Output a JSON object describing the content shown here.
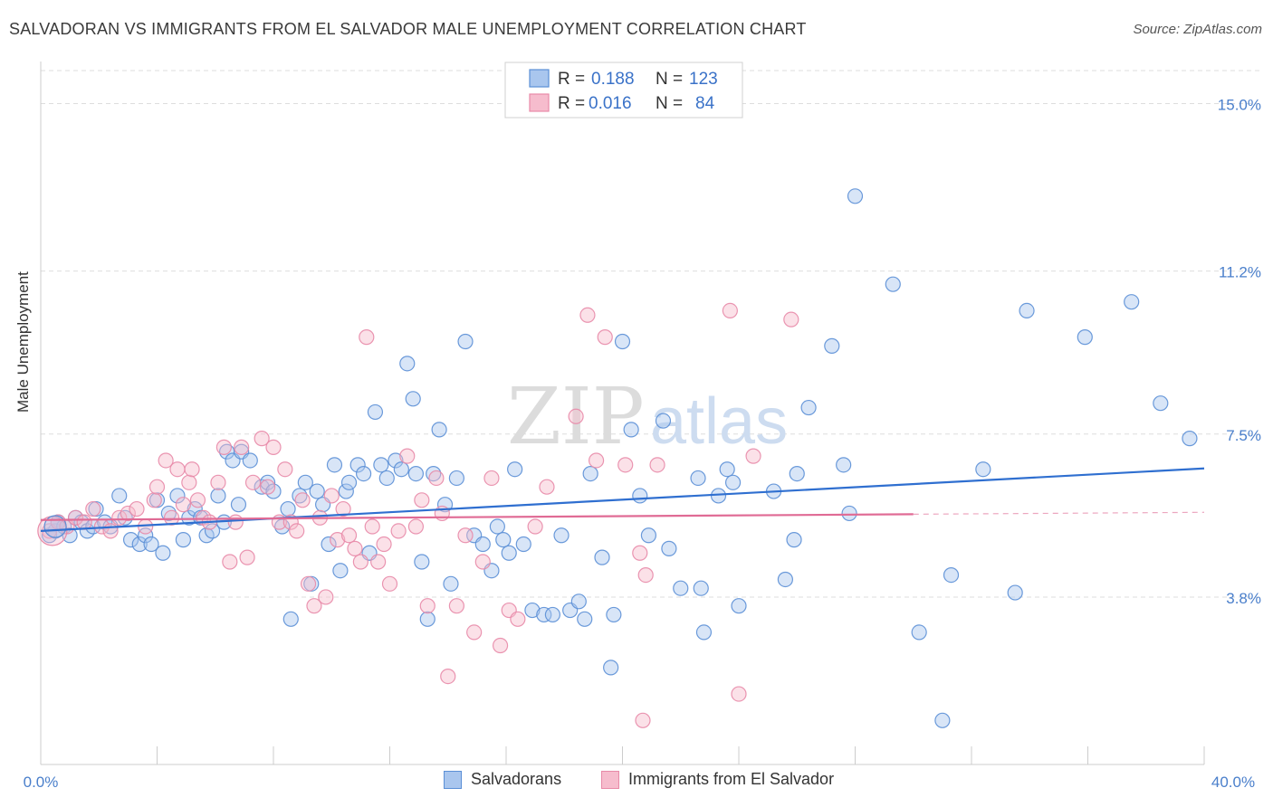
{
  "header": {
    "title": "SALVADORAN VS IMMIGRANTS FROM EL SALVADOR MALE UNEMPLOYMENT CORRELATION CHART",
    "source": "Source: ZipAtlas.com"
  },
  "watermark": {
    "zip": "ZIP",
    "atlas": "atlas"
  },
  "legend_top": {
    "rows": [
      {
        "r_label": "R =",
        "r_value": "0.188",
        "n_label": "N =",
        "n_value": "123"
      },
      {
        "r_label": "R =",
        "r_value": "0.016",
        "n_label": "N =",
        "n_value": "84"
      }
    ]
  },
  "legend_bottom": {
    "items": [
      {
        "label": "Salvadorans"
      },
      {
        "label": "Immigrants from El Salvador"
      }
    ]
  },
  "colors": {
    "blue_fill": "#a9c6ee",
    "blue_stroke": "#5b8fd6",
    "blue_line": "#2f6fd0",
    "pink_fill": "#f6bccd",
    "pink_stroke": "#e88aa8",
    "pink_line": "#e06b95",
    "tick_text": "#4a7fcb",
    "grid": "#dddddd"
  },
  "chart_data": {
    "type": "scatter",
    "title": "SALVADORAN VS IMMIGRANTS FROM EL SALVADOR MALE UNEMPLOYMENT CORRELATION CHART",
    "xlabel": "",
    "ylabel": "Male Unemployment",
    "xlim": [
      0,
      40
    ],
    "ylim": [
      0,
      15.75
    ],
    "x_tick_labels": [
      "0.0%",
      "40.0%"
    ],
    "y_ticks": [
      3.8,
      7.5,
      11.2,
      15.0
    ],
    "y_tick_labels": [
      "3.8%",
      "7.5%",
      "11.2%",
      "15.0%"
    ],
    "grid": true,
    "legend": "top-center",
    "series": [
      {
        "name": "Salvadorans",
        "color": "blue",
        "trend": {
          "x": [
            0,
            40
          ],
          "y": [
            5.3,
            6.72
          ]
        },
        "points": [
          [
            0.3,
            5.2
          ],
          [
            0.5,
            5.3
          ],
          [
            0.6,
            5.5
          ],
          [
            0.8,
            5.4
          ],
          [
            1.0,
            5.2
          ],
          [
            1.2,
            5.6
          ],
          [
            1.4,
            5.5
          ],
          [
            1.6,
            5.3
          ],
          [
            1.8,
            5.4
          ],
          [
            1.9,
            5.8
          ],
          [
            2.2,
            5.5
          ],
          [
            2.4,
            5.4
          ],
          [
            2.7,
            6.1
          ],
          [
            2.9,
            5.6
          ],
          [
            3.1,
            5.1
          ],
          [
            3.4,
            5.0
          ],
          [
            3.6,
            5.2
          ],
          [
            3.8,
            5.0
          ],
          [
            4.0,
            6.0
          ],
          [
            4.2,
            4.8
          ],
          [
            4.4,
            5.7
          ],
          [
            4.7,
            6.1
          ],
          [
            4.9,
            5.1
          ],
          [
            5.1,
            5.6
          ],
          [
            5.3,
            5.8
          ],
          [
            5.5,
            5.6
          ],
          [
            5.7,
            5.2
          ],
          [
            5.9,
            5.3
          ],
          [
            6.1,
            6.1
          ],
          [
            6.3,
            5.5
          ],
          [
            6.4,
            7.1
          ],
          [
            6.6,
            6.9
          ],
          [
            6.8,
            5.9
          ],
          [
            6.9,
            7.1
          ],
          [
            7.2,
            6.9
          ],
          [
            7.6,
            6.3
          ],
          [
            7.8,
            6.4
          ],
          [
            8.0,
            6.2
          ],
          [
            8.3,
            5.4
          ],
          [
            8.5,
            5.8
          ],
          [
            8.6,
            3.3
          ],
          [
            8.9,
            6.1
          ],
          [
            9.1,
            6.4
          ],
          [
            9.3,
            4.1
          ],
          [
            9.5,
            6.2
          ],
          [
            9.7,
            5.9
          ],
          [
            9.9,
            5.0
          ],
          [
            10.1,
            6.8
          ],
          [
            10.3,
            4.4
          ],
          [
            10.5,
            6.2
          ],
          [
            10.6,
            6.4
          ],
          [
            10.9,
            6.8
          ],
          [
            11.1,
            6.6
          ],
          [
            11.3,
            4.8
          ],
          [
            11.5,
            8.0
          ],
          [
            11.7,
            6.8
          ],
          [
            11.9,
            6.5
          ],
          [
            12.2,
            6.9
          ],
          [
            12.4,
            6.7
          ],
          [
            12.6,
            9.1
          ],
          [
            12.8,
            8.3
          ],
          [
            12.9,
            6.6
          ],
          [
            13.1,
            4.6
          ],
          [
            13.3,
            3.3
          ],
          [
            13.5,
            6.6
          ],
          [
            13.7,
            7.6
          ],
          [
            13.9,
            5.9
          ],
          [
            14.1,
            4.1
          ],
          [
            14.3,
            6.5
          ],
          [
            14.6,
            9.6
          ],
          [
            14.9,
            5.2
          ],
          [
            15.2,
            5.0
          ],
          [
            15.5,
            4.4
          ],
          [
            15.7,
            5.4
          ],
          [
            15.9,
            5.1
          ],
          [
            16.1,
            4.8
          ],
          [
            16.3,
            6.7
          ],
          [
            16.6,
            5.0
          ],
          [
            16.9,
            3.5
          ],
          [
            17.3,
            3.4
          ],
          [
            17.6,
            3.4
          ],
          [
            17.9,
            5.2
          ],
          [
            18.2,
            3.5
          ],
          [
            18.5,
            3.7
          ],
          [
            18.7,
            3.3
          ],
          [
            18.9,
            6.6
          ],
          [
            19.3,
            4.7
          ],
          [
            19.6,
            2.2
          ],
          [
            19.7,
            3.4
          ],
          [
            20.0,
            9.6
          ],
          [
            20.3,
            7.6
          ],
          [
            20.6,
            6.1
          ],
          [
            20.9,
            5.2
          ],
          [
            21.4,
            7.8
          ],
          [
            21.6,
            4.9
          ],
          [
            22.0,
            4.0
          ],
          [
            22.6,
            6.5
          ],
          [
            22.7,
            4.0
          ],
          [
            22.8,
            3.0
          ],
          [
            23.3,
            6.1
          ],
          [
            23.6,
            6.7
          ],
          [
            23.8,
            6.4
          ],
          [
            24.0,
            3.6
          ],
          [
            25.2,
            6.2
          ],
          [
            25.6,
            4.2
          ],
          [
            25.9,
            5.1
          ],
          [
            26.0,
            6.6
          ],
          [
            26.4,
            8.1
          ],
          [
            27.2,
            9.5
          ],
          [
            27.6,
            6.8
          ],
          [
            27.8,
            5.7
          ],
          [
            28.0,
            12.9
          ],
          [
            29.3,
            10.9
          ],
          [
            30.2,
            3.0
          ],
          [
            31.0,
            1.0
          ],
          [
            31.3,
            4.3
          ],
          [
            32.4,
            6.7
          ],
          [
            33.5,
            3.9
          ],
          [
            33.9,
            10.3
          ],
          [
            35.9,
            9.7
          ],
          [
            37.5,
            10.5
          ],
          [
            38.5,
            8.2
          ],
          [
            39.5,
            7.4
          ]
        ]
      },
      {
        "name": "Immigrants from El Salvador",
        "color": "pink",
        "trend": {
          "x": [
            0,
            30
          ],
          "y": [
            5.55,
            5.68
          ]
        },
        "points": [
          [
            0.3,
            5.3
          ],
          [
            0.6,
            5.5
          ],
          [
            0.9,
            5.4
          ],
          [
            1.2,
            5.6
          ],
          [
            1.5,
            5.5
          ],
          [
            1.8,
            5.8
          ],
          [
            2.1,
            5.4
          ],
          [
            2.4,
            5.3
          ],
          [
            2.7,
            5.6
          ],
          [
            3.0,
            5.7
          ],
          [
            3.3,
            5.8
          ],
          [
            3.6,
            5.4
          ],
          [
            3.9,
            6.0
          ],
          [
            4.0,
            6.3
          ],
          [
            4.3,
            6.9
          ],
          [
            4.5,
            5.6
          ],
          [
            4.7,
            6.7
          ],
          [
            4.9,
            5.9
          ],
          [
            5.1,
            6.4
          ],
          [
            5.2,
            6.7
          ],
          [
            5.4,
            6.0
          ],
          [
            5.6,
            5.6
          ],
          [
            5.8,
            5.5
          ],
          [
            6.1,
            6.4
          ],
          [
            6.3,
            7.2
          ],
          [
            6.5,
            4.6
          ],
          [
            6.7,
            5.5
          ],
          [
            6.9,
            7.2
          ],
          [
            7.1,
            4.7
          ],
          [
            7.3,
            6.4
          ],
          [
            7.6,
            7.4
          ],
          [
            7.8,
            6.3
          ],
          [
            8.0,
            7.2
          ],
          [
            8.2,
            5.5
          ],
          [
            8.4,
            6.7
          ],
          [
            8.6,
            5.5
          ],
          [
            8.8,
            5.3
          ],
          [
            9.0,
            6.0
          ],
          [
            9.2,
            4.1
          ],
          [
            9.4,
            3.6
          ],
          [
            9.6,
            5.6
          ],
          [
            9.8,
            3.8
          ],
          [
            10.0,
            6.1
          ],
          [
            10.2,
            5.1
          ],
          [
            10.4,
            5.8
          ],
          [
            10.6,
            5.2
          ],
          [
            10.8,
            4.9
          ],
          [
            11.0,
            4.6
          ],
          [
            11.2,
            9.7
          ],
          [
            11.4,
            5.4
          ],
          [
            11.6,
            4.6
          ],
          [
            11.8,
            5.0
          ],
          [
            12.0,
            4.1
          ],
          [
            12.3,
            5.3
          ],
          [
            12.6,
            7.0
          ],
          [
            12.9,
            5.4
          ],
          [
            13.1,
            6.0
          ],
          [
            13.3,
            3.6
          ],
          [
            13.6,
            6.5
          ],
          [
            13.8,
            5.7
          ],
          [
            14.0,
            2.0
          ],
          [
            14.3,
            3.6
          ],
          [
            14.6,
            5.2
          ],
          [
            14.9,
            3.0
          ],
          [
            15.2,
            4.6
          ],
          [
            15.5,
            6.5
          ],
          [
            15.8,
            2.7
          ],
          [
            16.1,
            3.5
          ],
          [
            16.4,
            3.3
          ],
          [
            17.0,
            5.4
          ],
          [
            17.4,
            6.3
          ],
          [
            18.4,
            7.9
          ],
          [
            18.8,
            10.2
          ],
          [
            19.1,
            6.9
          ],
          [
            19.4,
            9.7
          ],
          [
            20.1,
            6.8
          ],
          [
            20.6,
            4.8
          ],
          [
            20.7,
            1.0
          ],
          [
            20.8,
            4.3
          ],
          [
            21.2,
            6.8
          ],
          [
            23.7,
            10.3
          ],
          [
            24.0,
            1.6
          ],
          [
            25.8,
            10.1
          ],
          [
            24.5,
            7.0
          ]
        ]
      }
    ]
  }
}
